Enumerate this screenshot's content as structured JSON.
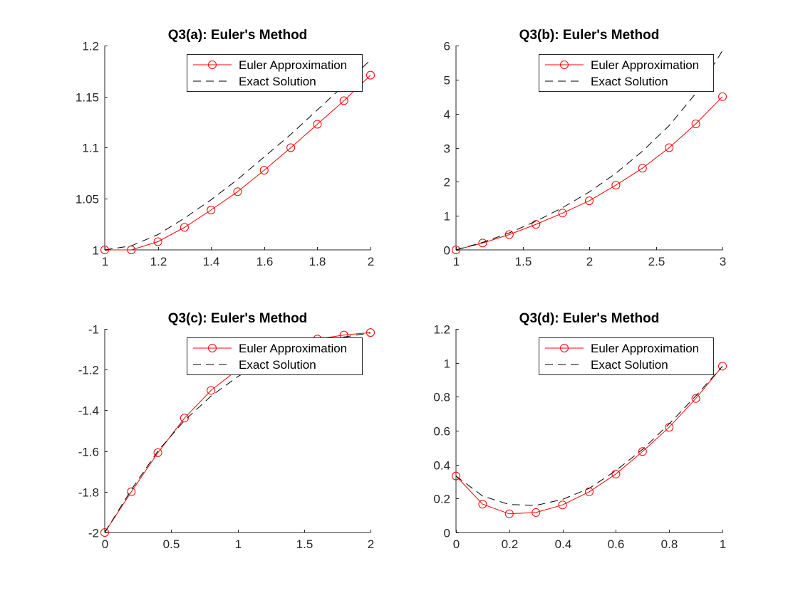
{
  "figure": {
    "background": "#ffffff",
    "colors": {
      "euler": "#ff0000",
      "exact": "#000000",
      "axes": "#262626"
    }
  },
  "chart_data": [
    {
      "type": "line",
      "title": "Q3(a): Euler's Method",
      "xlabel": "",
      "ylabel": "",
      "xlim": [
        1,
        2
      ],
      "ylim": [
        1,
        1.2
      ],
      "xticks": [
        1,
        1.2,
        1.4,
        1.6,
        1.8,
        2
      ],
      "xtick_labels": [
        "1",
        "1.2",
        "1.4",
        "1.6",
        "1.8",
        "2"
      ],
      "yticks": [
        1,
        1.05,
        1.1,
        1.15,
        1.2
      ],
      "ytick_labels": [
        "1",
        "1.05",
        "1.1",
        "1.15",
        "1.2"
      ],
      "grid": false,
      "legend": {
        "position": "top-right",
        "entries": [
          "Euler Approximation",
          "Exact Solution"
        ]
      },
      "series": [
        {
          "name": "Euler Approximation",
          "style": "solid-circle-markers",
          "color": "#ff0000",
          "x": [
            1,
            1.1,
            1.2,
            1.3,
            1.4,
            1.5,
            1.6,
            1.7,
            1.8,
            1.9,
            2
          ],
          "y": [
            1,
            1,
            1.008,
            1.022,
            1.039,
            1.057,
            1.078,
            1.1,
            1.123,
            1.146,
            1.171
          ]
        },
        {
          "name": "Exact Solution",
          "style": "dashed",
          "color": "#000000",
          "x": [
            1,
            1.1,
            1.2,
            1.3,
            1.4,
            1.5,
            1.6,
            1.7,
            1.8,
            1.9,
            2
          ],
          "y": [
            1,
            1.004,
            1.015,
            1.031,
            1.049,
            1.069,
            1.091,
            1.113,
            1.137,
            1.161,
            1.186
          ]
        }
      ]
    },
    {
      "type": "line",
      "title": "Q3(b): Euler's Method",
      "xlabel": "",
      "ylabel": "",
      "xlim": [
        1,
        3
      ],
      "ylim": [
        0,
        6
      ],
      "xticks": [
        1,
        1.5,
        2,
        2.5,
        3
      ],
      "xtick_labels": [
        "1",
        "1.5",
        "2",
        "2.5",
        "3"
      ],
      "yticks": [
        0,
        1,
        2,
        3,
        4,
        5,
        6
      ],
      "ytick_labels": [
        "0",
        "1",
        "2",
        "3",
        "4",
        "5",
        "6"
      ],
      "grid": false,
      "legend": {
        "position": "top-right",
        "entries": [
          "Euler Approximation",
          "Exact Solution"
        ]
      },
      "series": [
        {
          "name": "Euler Approximation",
          "style": "solid-circle-markers",
          "color": "#ff0000",
          "x": [
            1,
            1.2,
            1.4,
            1.6,
            1.8,
            2,
            2.2,
            2.4,
            2.6,
            2.8,
            3
          ],
          "y": [
            0,
            0.2,
            0.45,
            0.75,
            1.08,
            1.44,
            1.9,
            2.4,
            3.0,
            3.7,
            4.5
          ]
        },
        {
          "name": "Exact Solution",
          "style": "dashed",
          "color": "#000000",
          "x": [
            1,
            1.2,
            1.4,
            1.6,
            1.8,
            2,
            2.2,
            2.4,
            2.6,
            2.8,
            3
          ],
          "y": [
            0,
            0.22,
            0.5,
            0.84,
            1.24,
            1.7,
            2.25,
            2.9,
            3.65,
            4.6,
            5.85
          ]
        }
      ]
    },
    {
      "type": "line",
      "title": "Q3(c): Euler's Method",
      "xlabel": "",
      "ylabel": "",
      "xlim": [
        0,
        2
      ],
      "ylim": [
        -2,
        -1
      ],
      "xticks": [
        0,
        0.5,
        1,
        1.5,
        2
      ],
      "xtick_labels": [
        "0",
        "0.5",
        "1",
        "1.5",
        "2"
      ],
      "yticks": [
        -2,
        -1.8,
        -1.6,
        -1.4,
        -1.2,
        -1
      ],
      "ytick_labels": [
        "-2",
        "-1.8",
        "-1.6",
        "-1.4",
        "-1.2",
        "-1"
      ],
      "grid": false,
      "legend": {
        "position": "top-right",
        "entries": [
          "Euler Approximation",
          "Exact Solution"
        ]
      },
      "series": [
        {
          "name": "Euler Approximation",
          "style": "solid-circle-markers",
          "color": "#ff0000",
          "x": [
            0,
            0.2,
            0.4,
            0.6,
            0.8,
            1,
            1.2,
            1.4,
            1.6,
            1.8,
            2
          ],
          "y": [
            -2,
            -1.8,
            -1.608,
            -1.438,
            -1.302,
            -1.2,
            -1.13,
            -1.08,
            -1.05,
            -1.03,
            -1.018
          ]
        },
        {
          "name": "Exact Solution",
          "style": "dashed",
          "color": "#000000",
          "x": [
            0,
            0.2,
            0.4,
            0.6,
            0.8,
            1,
            1.2,
            1.4,
            1.6,
            1.8,
            2
          ],
          "y": [
            -2,
            -1.79,
            -1.6,
            -1.45,
            -1.33,
            -1.235,
            -1.16,
            -1.105,
            -1.065,
            -1.04,
            -1.02
          ]
        }
      ]
    },
    {
      "type": "line",
      "title": "Q3(d): Euler's Method",
      "xlabel": "",
      "ylabel": "",
      "xlim": [
        0,
        1
      ],
      "ylim": [
        0,
        1.2
      ],
      "xticks": [
        0,
        0.2,
        0.4,
        0.6,
        0.8,
        1
      ],
      "xtick_labels": [
        "0",
        "0.2",
        "0.4",
        "0.6",
        "0.8",
        "1"
      ],
      "yticks": [
        0,
        0.2,
        0.4,
        0.6,
        0.8,
        1,
        1.2
      ],
      "ytick_labels": [
        "0",
        "0.2",
        "0.4",
        "0.6",
        "0.8",
        "1",
        "1.2"
      ],
      "grid": false,
      "legend": {
        "position": "top-right",
        "entries": [
          "Euler Approximation",
          "Exact Solution"
        ]
      },
      "series": [
        {
          "name": "Euler Approximation",
          "style": "solid-circle-markers",
          "color": "#ff0000",
          "x": [
            0,
            0.1,
            0.2,
            0.3,
            0.4,
            0.5,
            0.6,
            0.7,
            0.8,
            0.9,
            1
          ],
          "y": [
            0.333,
            0.167,
            0.11,
            0.118,
            0.163,
            0.24,
            0.345,
            0.477,
            0.62,
            0.79,
            0.98
          ]
        },
        {
          "name": "Exact Solution",
          "style": "dashed",
          "color": "#000000",
          "x": [
            0,
            0.1,
            0.2,
            0.3,
            0.4,
            0.5,
            0.6,
            0.7,
            0.8,
            0.9,
            1
          ],
          "y": [
            0.333,
            0.215,
            0.165,
            0.16,
            0.195,
            0.26,
            0.365,
            0.49,
            0.64,
            0.805,
            0.98
          ]
        }
      ]
    }
  ]
}
